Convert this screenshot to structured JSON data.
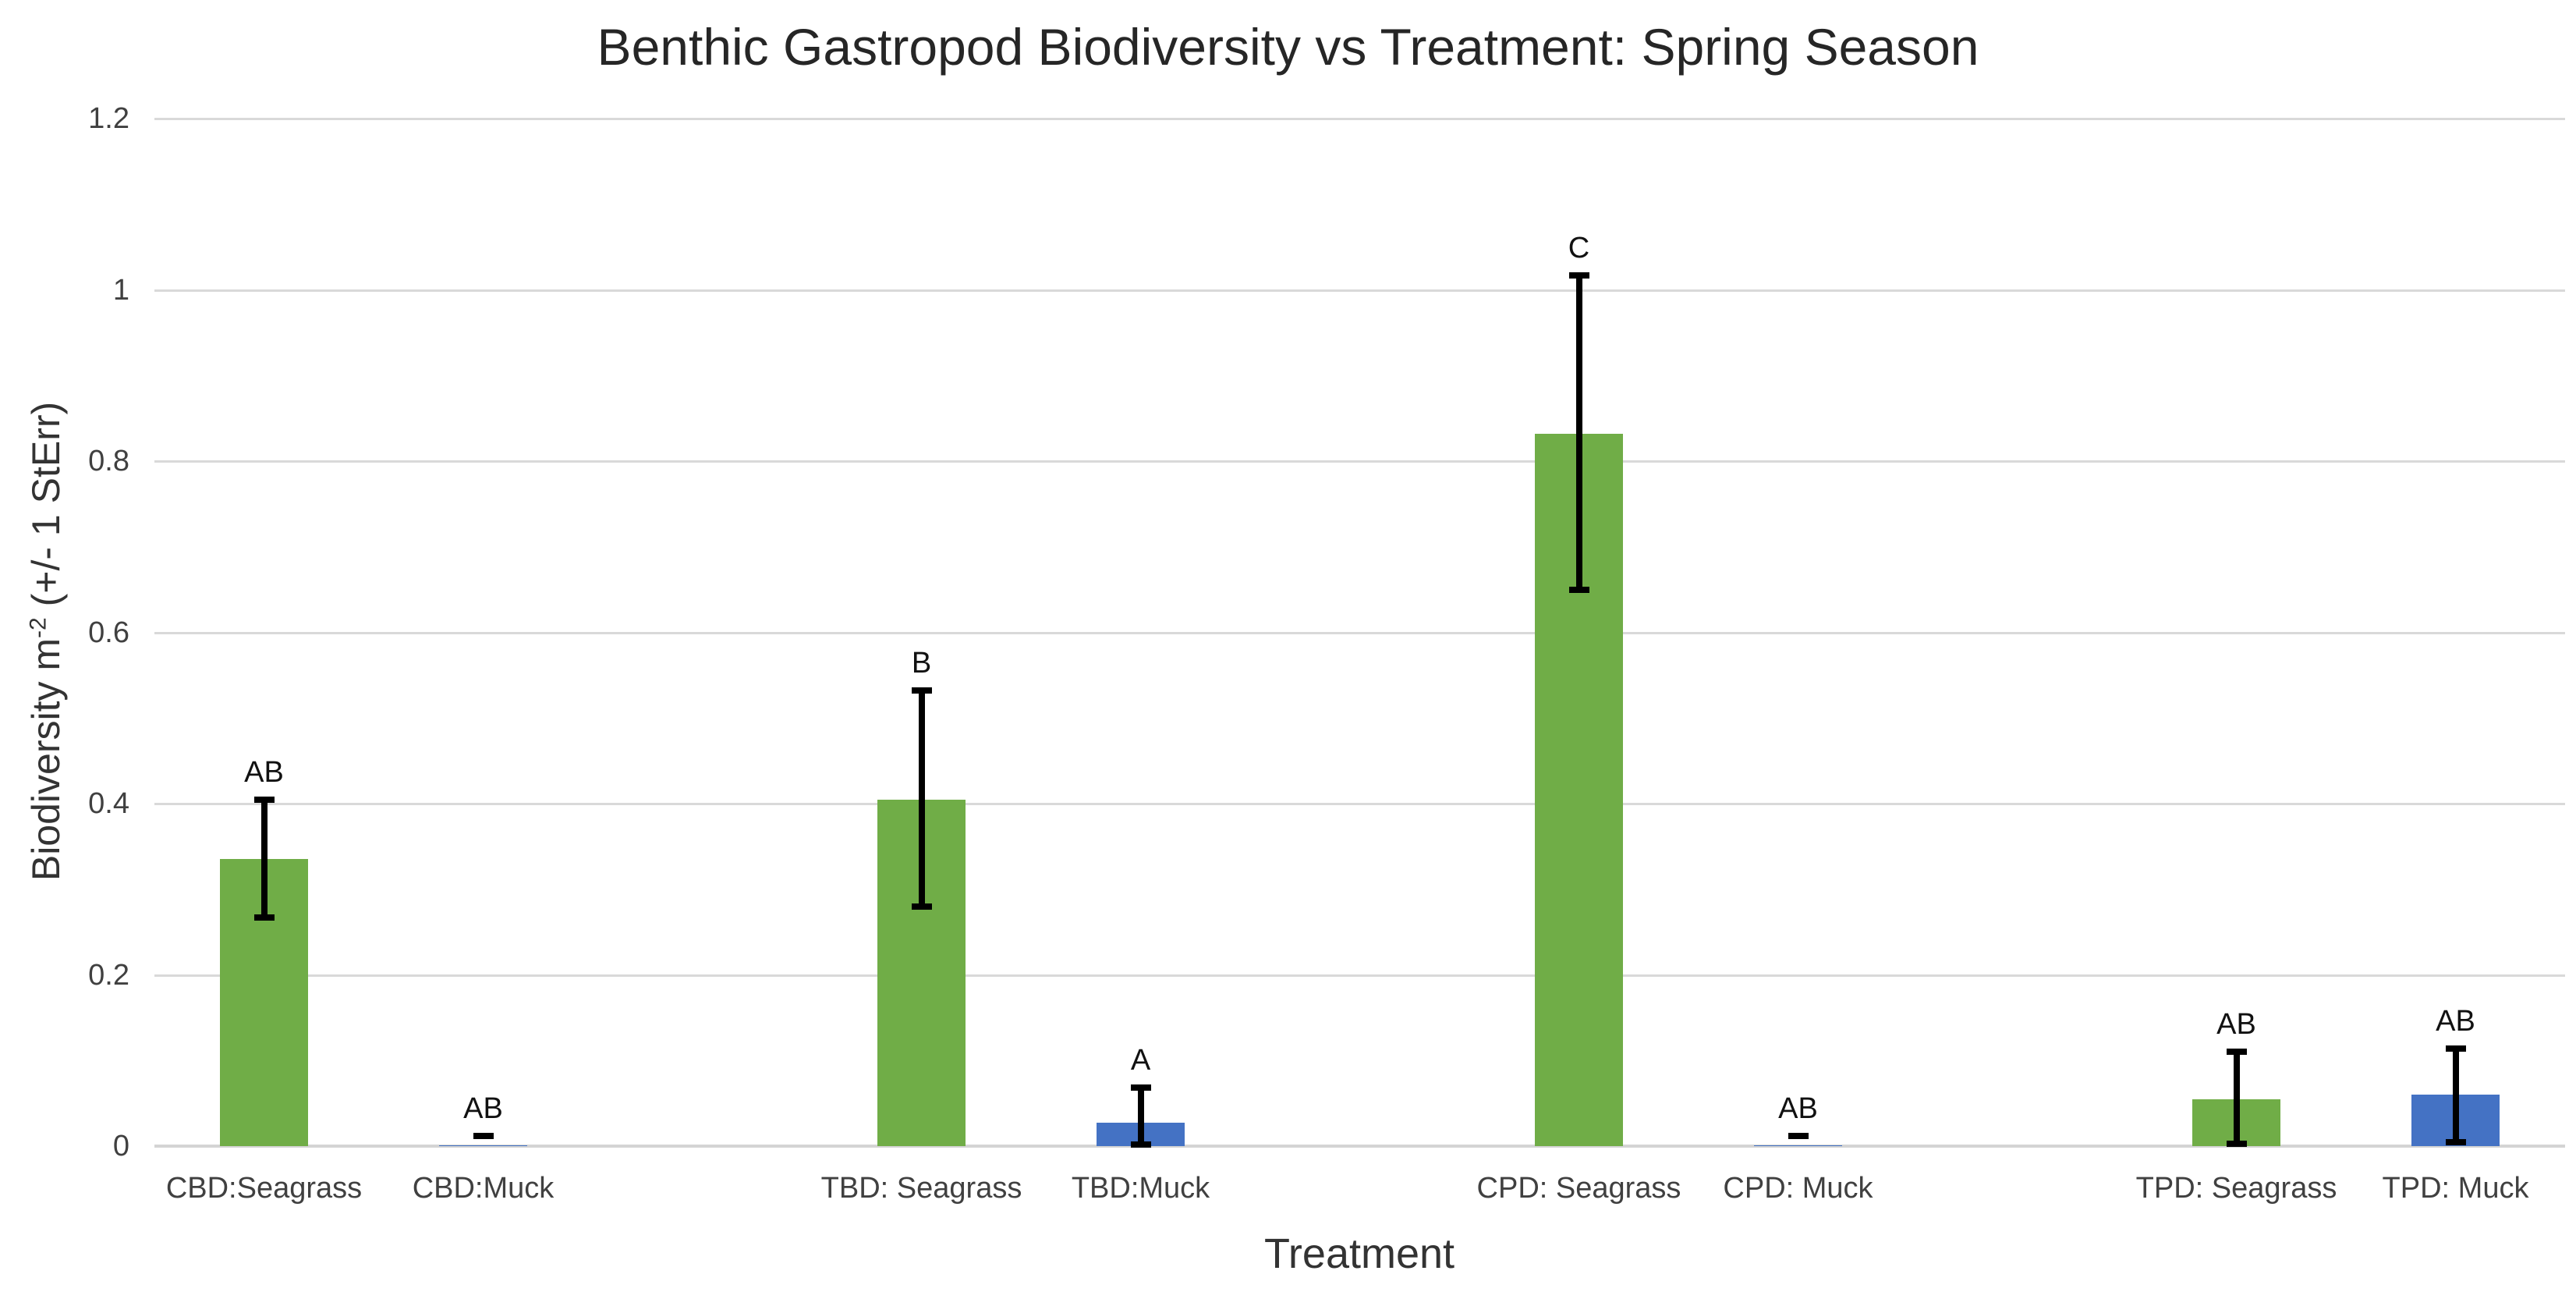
{
  "chart_data": {
    "type": "bar",
    "title": "Benthic Gastropod Biodiversity vs Treatment: Spring Season",
    "xlabel": "Treatment",
    "ylabel": "Biodiversity m-2 (+/- 1 StErr)",
    "ylabel_parts": {
      "prefix": "Biodiversity m",
      "superscript": "-2",
      "suffix": " (+/- 1 StErr)"
    },
    "ylim": [
      0,
      1.2
    ],
    "ytick_step": 0.2,
    "yticks": [
      {
        "label": "0",
        "value": 0
      },
      {
        "label": "0.2",
        "value": 0.2
      },
      {
        "label": "0.4",
        "value": 0.4
      },
      {
        "label": "0.6",
        "value": 0.6
      },
      {
        "label": "0.8",
        "value": 0.8
      },
      {
        "label": "1",
        "value": 1.0
      },
      {
        "label": "1.2",
        "value": 1.2
      }
    ],
    "grid": "horizontal",
    "legend_position": "none",
    "n_slots": 11,
    "categories": [
      "CBD:Seagrass",
      "CBD:Muck",
      "TBD: Seagrass",
      "TBD:Muck",
      "CPD: Seagrass",
      "CPD: Muck",
      "TPD: Seagrass",
      "TPD: Muck"
    ],
    "bars": [
      {
        "label": "CBD:Seagrass",
        "slot": 0,
        "value": 0.335,
        "err_low": 0.267,
        "err_high": 0.405,
        "letter": "AB",
        "series": "Seagrass",
        "color": "#70AD47"
      },
      {
        "label": "CBD:Muck",
        "slot": 1,
        "value": 0.001,
        "err_low": 0.0,
        "err_high": 0.012,
        "letter": "AB",
        "series": "Muck",
        "color": "#4472C4"
      },
      {
        "label": "TBD: Seagrass",
        "slot": 3,
        "value": 0.405,
        "err_low": 0.28,
        "err_high": 0.532,
        "letter": "B",
        "series": "Seagrass",
        "color": "#70AD47"
      },
      {
        "label": "TBD:Muck",
        "slot": 4,
        "value": 0.027,
        "err_low": 0.002,
        "err_high": 0.068,
        "letter": "A",
        "series": "Muck",
        "color": "#4472C4"
      },
      {
        "label": "CPD: Seagrass",
        "slot": 6,
        "value": 0.832,
        "err_low": 0.65,
        "err_high": 1.017,
        "letter": "C",
        "series": "Seagrass",
        "color": "#70AD47"
      },
      {
        "label": "CPD: Muck",
        "slot": 7,
        "value": 0.001,
        "err_low": 0.0,
        "err_high": 0.012,
        "letter": "AB",
        "series": "Muck",
        "color": "#4472C4"
      },
      {
        "label": "TPD: Seagrass",
        "slot": 9,
        "value": 0.055,
        "err_low": 0.003,
        "err_high": 0.11,
        "letter": "AB",
        "series": "Seagrass",
        "color": "#70AD47"
      },
      {
        "label": "TPD: Muck",
        "slot": 10,
        "value": 0.06,
        "err_low": 0.005,
        "err_high": 0.114,
        "letter": "AB",
        "series": "Muck",
        "color": "#4472C4"
      }
    ],
    "series_colors": {
      "Seagrass": "#70AD47",
      "Muck": "#4472C4"
    },
    "gridline_color": "#D9D9D9",
    "error_bar_color": "#000000",
    "text_color": "#404040"
  }
}
